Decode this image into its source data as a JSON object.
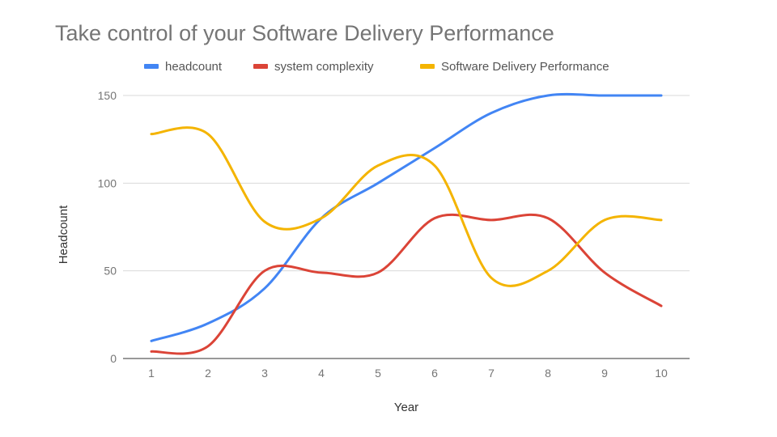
{
  "chart_data": {
    "type": "line",
    "title": "Take control of your Software Delivery Performance",
    "xlabel": "Year",
    "ylabel": "Headcount",
    "categories": [
      "1",
      "2",
      "3",
      "4",
      "5",
      "6",
      "7",
      "8",
      "9",
      "10"
    ],
    "ylim": [
      0,
      150
    ],
    "yticks": [
      0,
      50,
      100,
      150
    ],
    "grid": true,
    "legend_position": "top",
    "smooth": true,
    "series": [
      {
        "name": "headcount",
        "color": "#4285f4",
        "values": [
          10,
          20,
          40,
          80,
          100,
          120,
          140,
          150,
          150,
          150
        ]
      },
      {
        "name": "system complexity",
        "color": "#db4437",
        "values": [
          4,
          7,
          50,
          49,
          49,
          80,
          79,
          80,
          49,
          30
        ]
      },
      {
        "name": "Software Delivery Performance",
        "color": "#f4b400",
        "values": [
          128,
          128,
          78,
          80,
          110,
          110,
          46,
          50,
          79,
          79
        ]
      }
    ]
  }
}
